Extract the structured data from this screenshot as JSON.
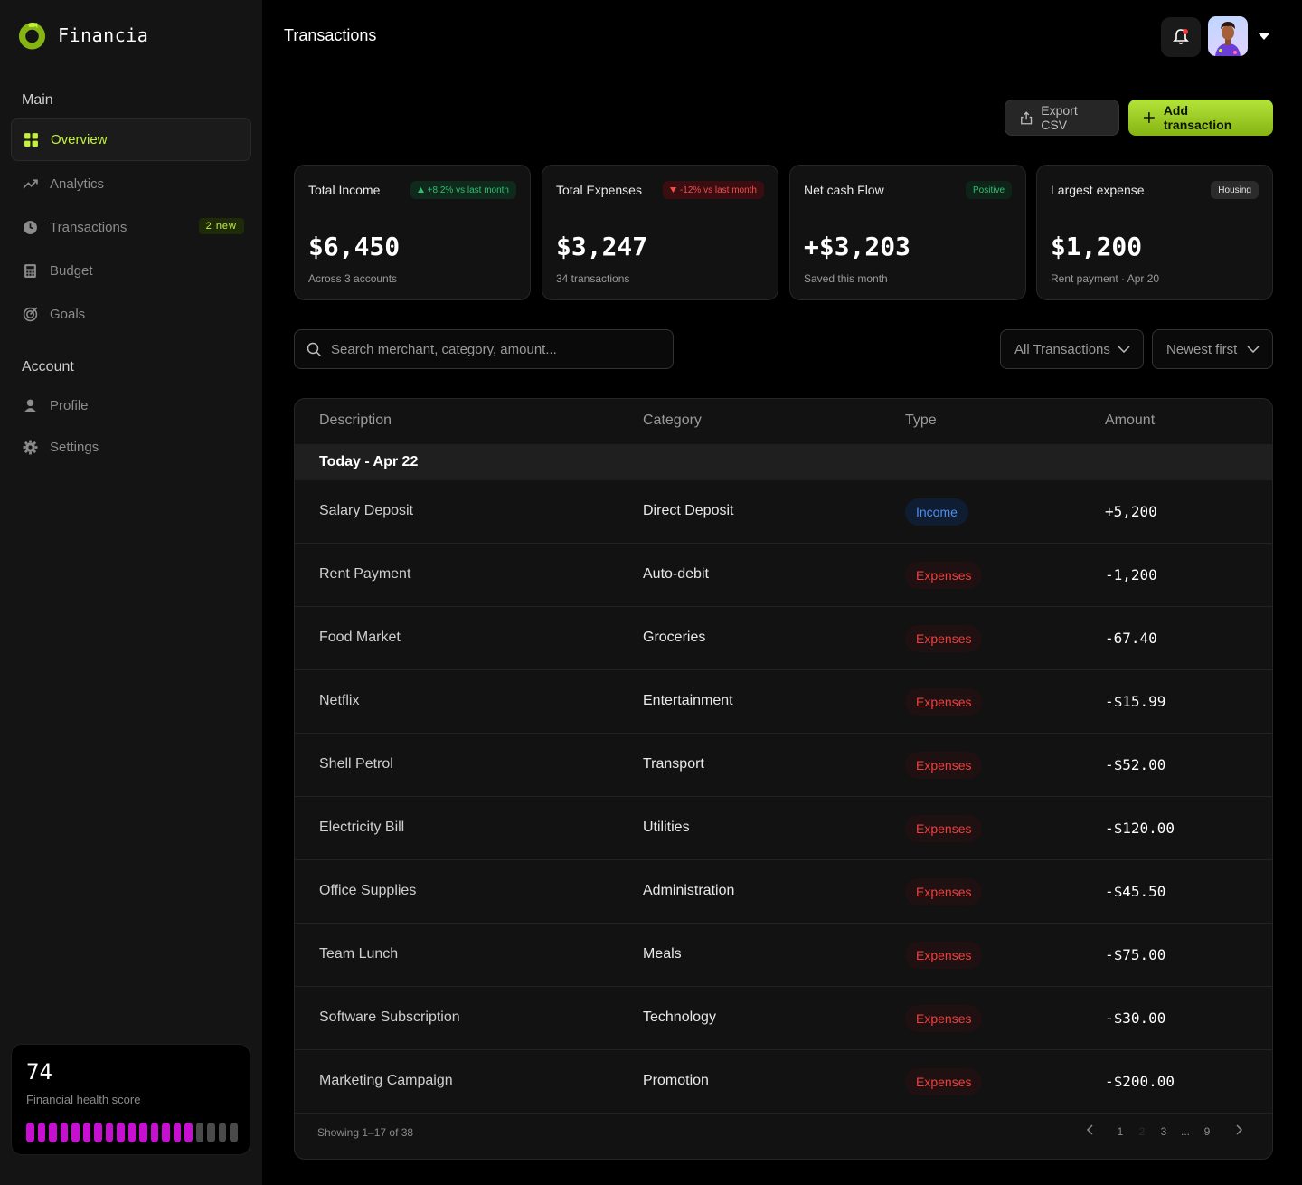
{
  "app": {
    "name": "Financia"
  },
  "sidebar": {
    "main_title": "Main",
    "main_items": [
      {
        "label": "Overview",
        "icon": "grid-icon",
        "active": true
      },
      {
        "label": "Analytics",
        "icon": "trend-icon"
      },
      {
        "label": "Transactions",
        "icon": "clock-icon",
        "badge": "2 new"
      },
      {
        "label": "Budget",
        "icon": "calculator-icon"
      },
      {
        "label": "Goals",
        "icon": "target-icon"
      }
    ],
    "account_title": "Account",
    "account_items": [
      {
        "label": "Profile",
        "icon": "user-icon"
      },
      {
        "label": "Settings",
        "icon": "gear-icon"
      }
    ],
    "health": {
      "score": "74",
      "label": "Financial health score",
      "segments_total": 19,
      "segments_filled": 15
    }
  },
  "header": {
    "title": "Transactions",
    "export_label": "Export CSV",
    "add_label": "Add transaction"
  },
  "stats": [
    {
      "title": "Total Income",
      "badge": "+8.2% vs last month",
      "value": "$6,450",
      "sub": "Across 3 accounts"
    },
    {
      "title": "Total Expenses",
      "badge": "-12% vs last month",
      "value": "$3,247",
      "sub": "34 transactions"
    },
    {
      "title": "Net cash Flow",
      "badge": "Positive",
      "value": "+$3,203",
      "sub": "Saved this month"
    },
    {
      "title": "Largest expense",
      "badge": "Housing",
      "value": "$1,200",
      "sub": "Rent payment · Apr 20"
    }
  ],
  "filters": {
    "search_placeholder": "Search merchant, category, amount...",
    "type_select": "All Transactions",
    "sort_select": "Newest first"
  },
  "table": {
    "columns": [
      "Description",
      "Category",
      "Type",
      "Amount"
    ],
    "group": "Today - Apr 22",
    "rows": [
      {
        "desc": "Salary Deposit",
        "cat": "Direct Deposit",
        "type": "Income",
        "amt": "+5,200"
      },
      {
        "desc": "Rent Payment",
        "cat": "Auto-debit",
        "type": "Expenses",
        "amt": "-1,200"
      },
      {
        "desc": "Food Market",
        "cat": "Groceries",
        "type": "Expenses",
        "amt": "-67.40"
      },
      {
        "desc": "Netflix",
        "cat": "Entertainment",
        "type": "Expenses",
        "amt": "-$15.99"
      },
      {
        "desc": "Shell Petrol",
        "cat": "Transport",
        "type": "Expenses",
        "amt": "-$52.00"
      },
      {
        "desc": "Electricity Bill",
        "cat": "Utilities",
        "type": "Expenses",
        "amt": "-$120.00"
      },
      {
        "desc": "Office Supplies",
        "cat": "Administration",
        "type": "Expenses",
        "amt": "-$45.50"
      },
      {
        "desc": "Team Lunch",
        "cat": "Meals",
        "type": "Expenses",
        "amt": "-$75.00"
      },
      {
        "desc": "Software Subscription",
        "cat": "Technology",
        "type": "Expenses",
        "amt": "-$30.00"
      },
      {
        "desc": "Marketing Campaign",
        "cat": "Promotion",
        "type": "Expenses",
        "amt": "-$200.00"
      }
    ],
    "showing": "Showing 1–17 of 38",
    "pages": [
      "1",
      "2",
      "3",
      "...",
      "9"
    ],
    "current_page": "2"
  },
  "colors": {
    "accent": "#c4f13c",
    "income": "#4f8cf0",
    "expense": "#ef4040",
    "health": "#c60fd0"
  }
}
